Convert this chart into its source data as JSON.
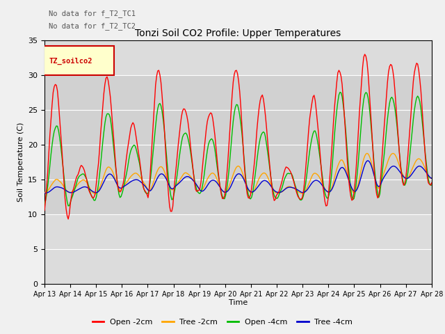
{
  "title": "Tonzi Soil CO2 Profile: Upper Temperatures",
  "ylabel": "Soil Temperature (C)",
  "xlabel": "Time",
  "no_data_text1": "No data for f_T2_TC1",
  "no_data_text2": "No data for f_T2_TC2",
  "legend_label": "TZ_soilco2",
  "legend_entries": [
    "Open -2cm",
    "Tree -2cm",
    "Open -4cm",
    "Tree -4cm"
  ],
  "line_colors": [
    "#ff0000",
    "#ffa500",
    "#00bb00",
    "#0000cc"
  ],
  "ylim": [
    0,
    35
  ],
  "yticks": [
    0,
    5,
    10,
    15,
    20,
    25,
    30,
    35
  ],
  "x_start": 13,
  "x_end": 28,
  "xtick_labels": [
    "Apr 13",
    "Apr 14",
    "Apr 15",
    "Apr 16",
    "Apr 17",
    "Apr 18",
    "Apr 19",
    "Apr 20",
    "Apr 21",
    "Apr 22",
    "Apr 23",
    "Apr 24",
    "Apr 25",
    "Apr 26",
    "Apr 27",
    "Apr 28"
  ],
  "xtick_positions": [
    13,
    14,
    15,
    16,
    17,
    18,
    19,
    20,
    21,
    22,
    23,
    24,
    25,
    26,
    27,
    28
  ]
}
